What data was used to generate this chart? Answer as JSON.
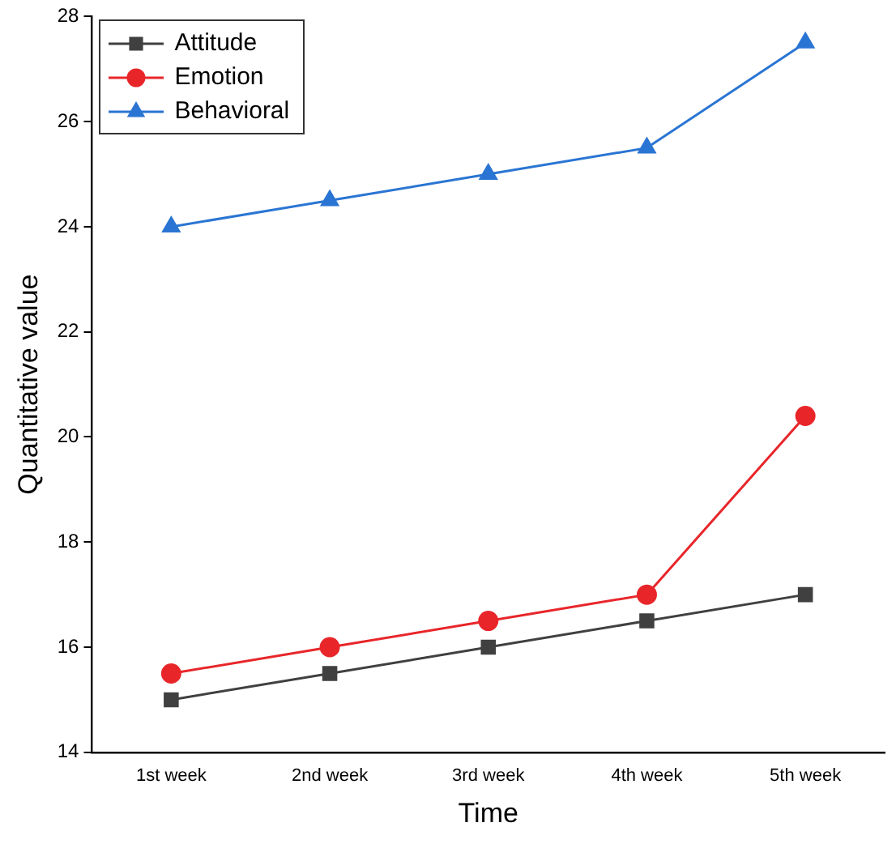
{
  "chart_data": {
    "type": "line",
    "xlabel": "Time",
    "ylabel": "Quantitative value",
    "categories": [
      "1st week",
      "2nd week",
      "3rd week",
      "4th week",
      "5th week"
    ],
    "ylim": [
      14,
      28
    ],
    "yticks": [
      14,
      16,
      18,
      20,
      22,
      24,
      26,
      28
    ],
    "grid": false,
    "legend": "top left",
    "line_style": "solid",
    "series": [
      {
        "name": "Attitude",
        "color": "#404040",
        "marker": "square",
        "values": [
          15,
          15.5,
          16,
          16.5,
          17
        ]
      },
      {
        "name": "Emotion",
        "color": "#e8262a",
        "marker": "circle",
        "values": [
          15.5,
          16,
          16.5,
          17,
          20.4
        ]
      },
      {
        "name": "Behavioral",
        "color": "#2a75d3",
        "marker": "triangle",
        "values": [
          24,
          24.5,
          25,
          25.5,
          27.5
        ]
      }
    ]
  }
}
